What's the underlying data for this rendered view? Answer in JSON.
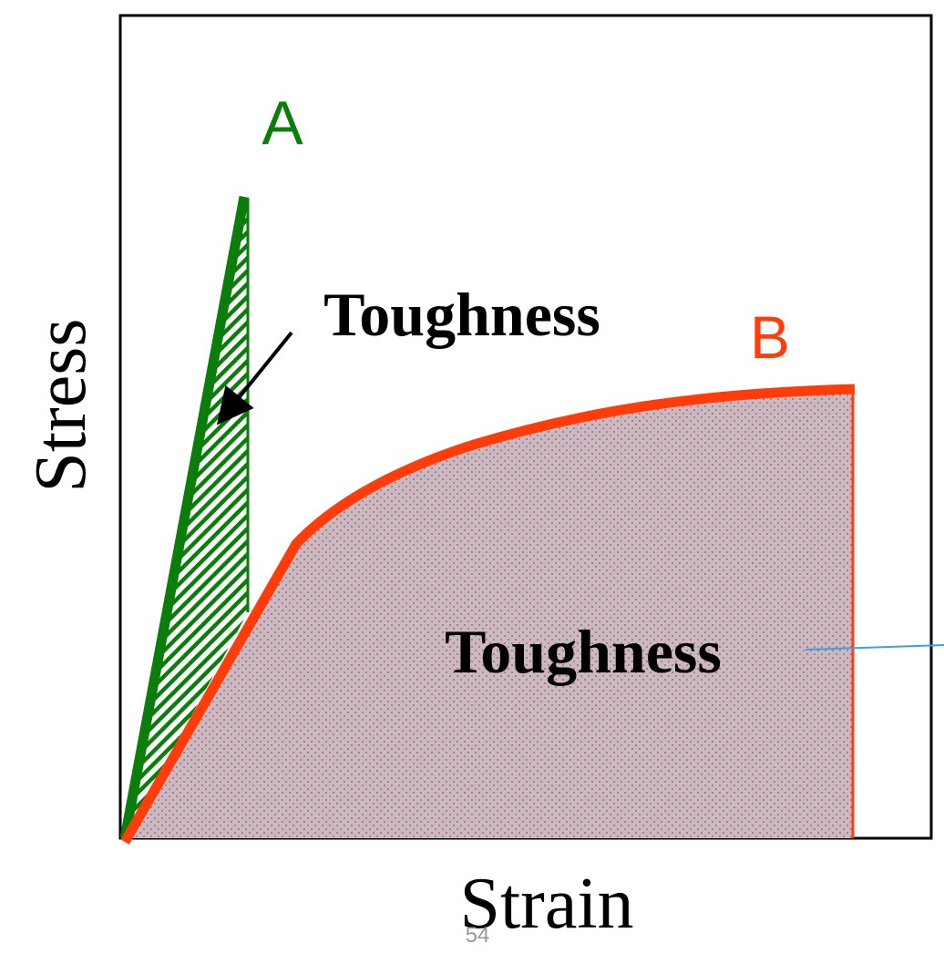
{
  "axes": {
    "xlabel": "Strain",
    "ylabel": "Stress"
  },
  "curves": {
    "a": {
      "label": "A",
      "color": "#0a7d0a"
    },
    "b": {
      "label": "B",
      "color": "#ff3c0a"
    }
  },
  "annotations": {
    "toughness_a": "Toughness",
    "toughness_b": "Toughness"
  },
  "colors": {
    "frame": "#000000",
    "area_b_fill": "#c4bcc0",
    "area_b_dots": "#e0306a",
    "area_a_hatch": "#0a7d0a",
    "pointer_line": "#3aa0e8",
    "arrow": "#000000"
  },
  "page_number": "54"
}
